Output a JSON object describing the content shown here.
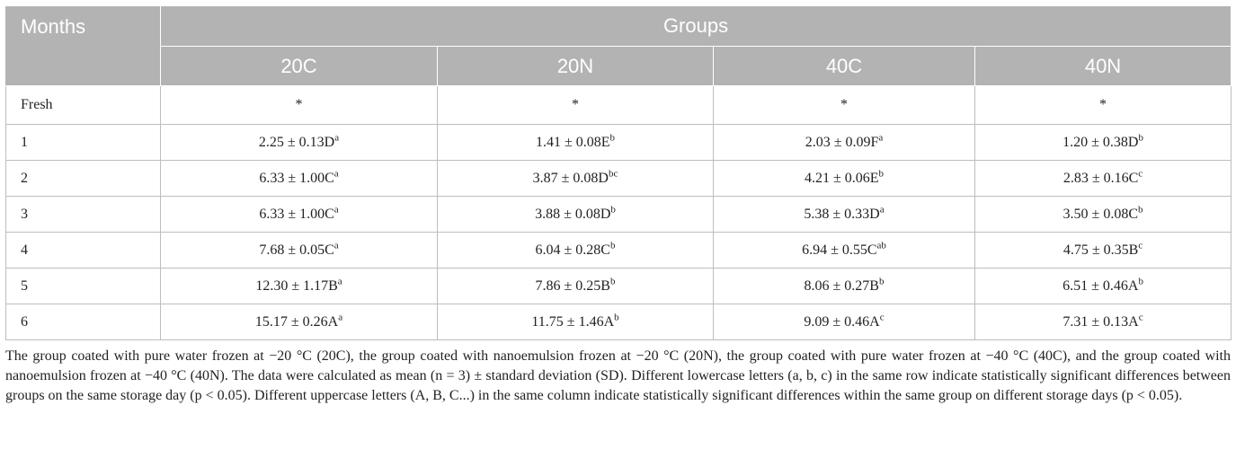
{
  "header": {
    "months_label": "Months",
    "groups_label": "Groups",
    "group_columns": [
      "20C",
      "20N",
      "40C",
      "40N"
    ]
  },
  "rows": [
    {
      "month": "Fresh",
      "cells": [
        {
          "value": "*",
          "sup": ""
        },
        {
          "value": "*",
          "sup": ""
        },
        {
          "value": "*",
          "sup": ""
        },
        {
          "value": "*",
          "sup": ""
        }
      ]
    },
    {
      "month": "1",
      "cells": [
        {
          "value": "2.25 ± 0.13D",
          "sup": "a"
        },
        {
          "value": "1.41 ± 0.08E",
          "sup": "b"
        },
        {
          "value": "2.03 ± 0.09F",
          "sup": "a"
        },
        {
          "value": "1.20 ± 0.38D",
          "sup": "b"
        }
      ]
    },
    {
      "month": "2",
      "cells": [
        {
          "value": "6.33 ± 1.00C",
          "sup": "a"
        },
        {
          "value": "3.87 ± 0.08D",
          "sup": "bc"
        },
        {
          "value": "4.21 ± 0.06E",
          "sup": "b"
        },
        {
          "value": "2.83 ± 0.16C",
          "sup": "c"
        }
      ]
    },
    {
      "month": "3",
      "cells": [
        {
          "value": "6.33 ± 1.00C",
          "sup": "a"
        },
        {
          "value": "3.88 ± 0.08D",
          "sup": "b"
        },
        {
          "value": "5.38 ± 0.33D",
          "sup": "a"
        },
        {
          "value": "3.50 ± 0.08C",
          "sup": "b"
        }
      ]
    },
    {
      "month": "4",
      "cells": [
        {
          "value": "7.68 ± 0.05C",
          "sup": "a"
        },
        {
          "value": "6.04 ± 0.28C",
          "sup": "b"
        },
        {
          "value": "6.94 ± 0.55C",
          "sup": "ab"
        },
        {
          "value": "4.75 ± 0.35B",
          "sup": "c"
        }
      ]
    },
    {
      "month": "5",
      "cells": [
        {
          "value": "12.30 ± 1.17B",
          "sup": "a"
        },
        {
          "value": "7.86 ± 0.25B",
          "sup": "b"
        },
        {
          "value": "8.06 ± 0.27B",
          "sup": "b"
        },
        {
          "value": "6.51 ± 0.46A",
          "sup": "b"
        }
      ]
    },
    {
      "month": "6",
      "cells": [
        {
          "value": "15.17 ± 0.26A",
          "sup": "a"
        },
        {
          "value": "11.75 ± 1.46A",
          "sup": "b"
        },
        {
          "value": "9.09 ± 0.46A",
          "sup": "c"
        },
        {
          "value": "7.31 ± 0.13A",
          "sup": "c"
        }
      ]
    }
  ],
  "footnote": "The group coated with pure water frozen at −20 °C (20C), the group coated with nanoemulsion frozen at −20 °C (20N), the group coated with pure water frozen at −40 °C (40C), and the group coated with nanoemulsion frozen at −40 °C (40N). The data were calculated as mean (n = 3) ± standard deviation (SD). Different lowercase letters (a, b, c) in the same row indicate statistically significant differences between groups on the same storage day (p < 0.05). Different uppercase letters (A, B, C...) in the same column indicate statistically significant differences within the same group on different storage days (p < 0.05).",
  "colors": {
    "header_bg": "#b3b3b3",
    "header_text": "#ffffff",
    "border": "#bdbdbd",
    "body_text": "#222222"
  }
}
